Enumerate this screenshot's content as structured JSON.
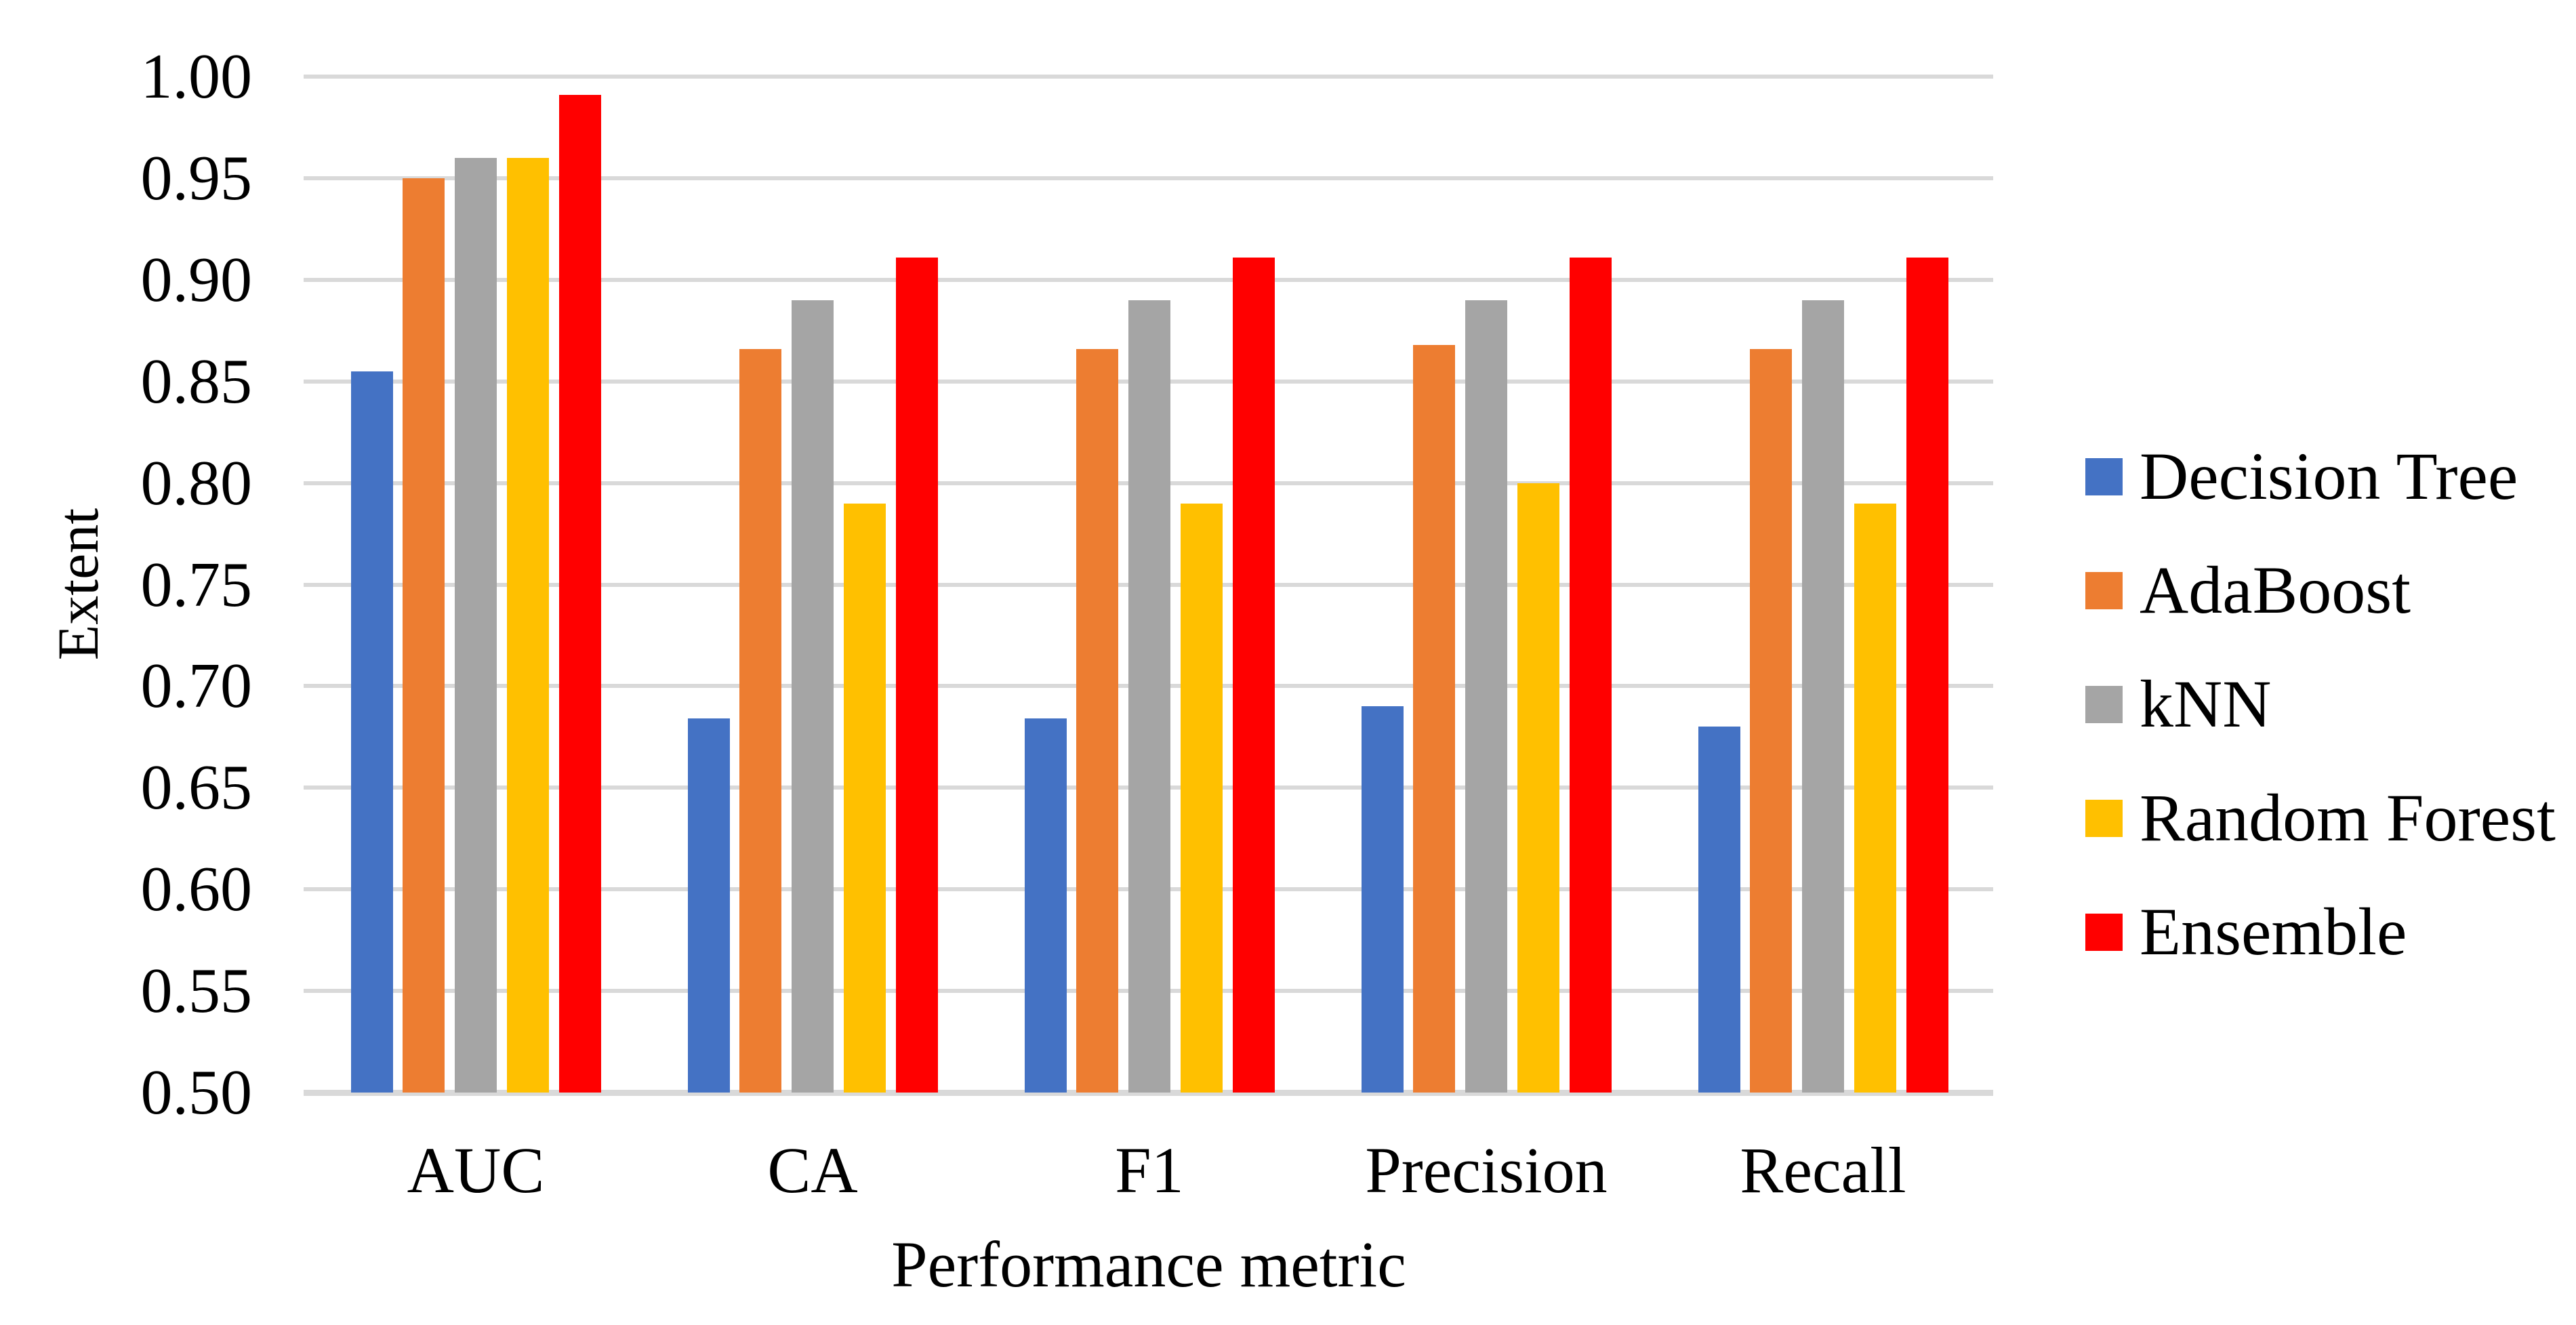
{
  "chart_data": {
    "type": "bar",
    "title": "",
    "xlabel": "Performance metric",
    "ylabel": "Extent",
    "categories": [
      "AUC",
      "CA",
      "F1",
      "Precision",
      "Recall"
    ],
    "series": [
      {
        "name": "Decision Tree",
        "color": "#4472C4",
        "values": [
          0.855,
          0.684,
          0.684,
          0.69,
          0.68
        ]
      },
      {
        "name": "AdaBoost",
        "color": "#ED7D31",
        "values": [
          0.95,
          0.866,
          0.866,
          0.868,
          0.866
        ]
      },
      {
        "name": "kNN",
        "color": "#A5A5A5",
        "values": [
          0.96,
          0.89,
          0.89,
          0.89,
          0.89
        ]
      },
      {
        "name": "Random Forest",
        "color": "#FFC000",
        "values": [
          0.96,
          0.79,
          0.79,
          0.8,
          0.79
        ]
      },
      {
        "name": "Ensemble",
        "color": "#FF0000",
        "values": [
          0.991,
          0.911,
          0.911,
          0.911,
          0.911
        ]
      }
    ],
    "y_axis": {
      "min": 0.5,
      "max": 1.0,
      "step": 0.05,
      "tick_labels": [
        "0.50",
        "0.55",
        "0.60",
        "0.65",
        "0.70",
        "0.75",
        "0.80",
        "0.85",
        "0.90",
        "0.95",
        "1.00"
      ]
    },
    "grid": true,
    "legend_position": "right",
    "legend_entries": [
      "Decision Tree",
      "AdaBoost",
      "kNN",
      "Random Forest",
      "Ensemble"
    ],
    "gridline_color": "#D9D9D9",
    "axis_line_color": "#D9D9D9",
    "text_color": "#000000",
    "background": "#FFFFFF"
  }
}
